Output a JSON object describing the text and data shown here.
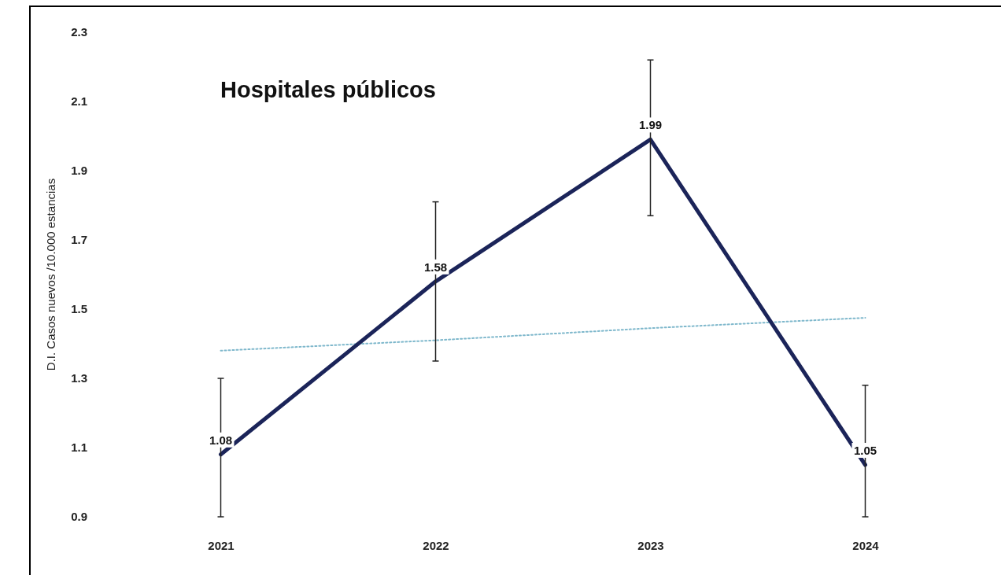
{
  "chart_data": {
    "type": "line",
    "title": "Hospitales públicos",
    "ylabel": "D.I. Casos nuevos /10.000 estancias",
    "categories": [
      "2021",
      "2022",
      "2023",
      "2024"
    ],
    "ylim": [
      0.9,
      2.3
    ],
    "yticks": [
      0.9,
      1.1,
      1.3,
      1.5,
      1.7,
      1.9,
      2.1,
      2.3
    ],
    "grid": false,
    "marker": "none",
    "series": [
      {
        "color": "#1b2459",
        "values": [
          1.08,
          1.58,
          1.99,
          1.05
        ],
        "errors": [
          [
            0.9,
            1.3
          ],
          [
            1.35,
            1.81
          ],
          [
            1.77,
            2.22
          ],
          [
            0.9,
            1.28
          ]
        ],
        "data_labels": true,
        "line_style": "solid"
      },
      {
        "type": "line",
        "color": "#7fb8cc",
        "values": [
          1.38,
          1.41,
          1.445,
          1.475
        ],
        "line_style": "dotted"
      }
    ]
  }
}
